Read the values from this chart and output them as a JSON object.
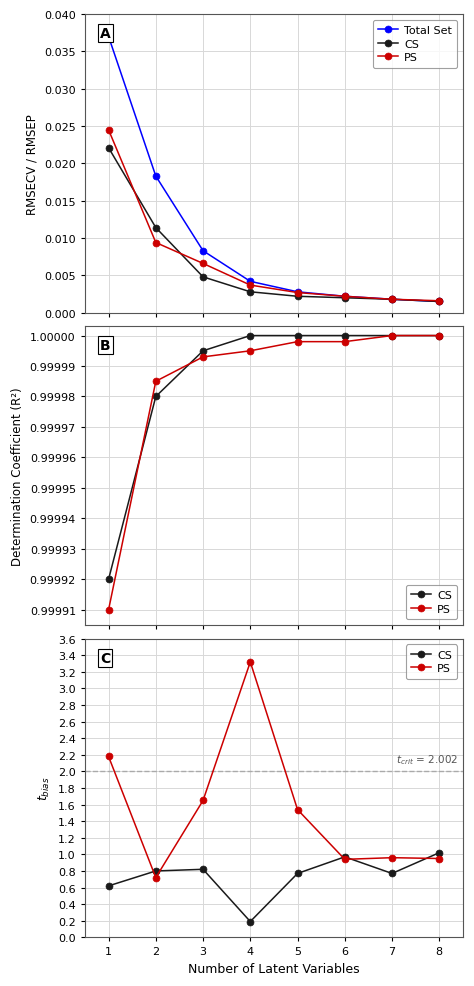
{
  "lv": [
    1,
    2,
    3,
    4,
    5,
    6,
    7,
    8
  ],
  "panel_A": {
    "total_set": [
      0.037,
      0.0183,
      0.0083,
      0.0042,
      0.0028,
      0.0022,
      0.0018,
      0.0015
    ],
    "cs": [
      0.0221,
      0.0114,
      0.0048,
      0.0028,
      0.0022,
      0.002,
      0.0018,
      0.0015
    ],
    "ps": [
      0.0245,
      0.0094,
      0.0066,
      0.0037,
      0.0027,
      0.0022,
      0.0018,
      0.0016
    ],
    "ylim": [
      0.0,
      0.04
    ],
    "yticks": [
      0.0,
      0.005,
      0.01,
      0.015,
      0.02,
      0.025,
      0.03,
      0.035,
      0.04
    ],
    "ylabel": "RMSECV / RMSEP",
    "label": "A"
  },
  "panel_B": {
    "cs": [
      0.99992,
      0.99998,
      0.999995,
      1.0,
      1.0,
      1.0,
      1.0,
      1.0
    ],
    "ps": [
      0.99991,
      0.999985,
      0.999993,
      0.999995,
      0.999998,
      0.999998,
      1.0,
      1.0
    ],
    "ylim": [
      0.999905,
      1.000003
    ],
    "yticks": [
      0.99991,
      0.99992,
      0.99993,
      0.99994,
      0.99995,
      0.99996,
      0.99997,
      0.99998,
      0.99999,
      1.0
    ],
    "ylabel": "Determination Coefficient (R²)",
    "label": "B"
  },
  "panel_C": {
    "cs": [
      0.62,
      0.8,
      0.82,
      0.19,
      0.77,
      0.97,
      0.77,
      1.02
    ],
    "ps": [
      2.18,
      0.72,
      1.65,
      3.32,
      1.54,
      0.94,
      0.96,
      0.95
    ],
    "t_crit": 2.002,
    "ylim": [
      0.0,
      3.6
    ],
    "yticks": [
      0.0,
      0.2,
      0.4,
      0.6,
      0.8,
      1.0,
      1.2,
      1.4,
      1.6,
      1.8,
      2.0,
      2.2,
      2.4,
      2.6,
      2.8,
      3.0,
      3.2,
      3.4,
      3.6
    ],
    "ylabel": "t_bias",
    "label": "C"
  },
  "xlabel": "Number of Latent Variables",
  "color_blue": "#0000FF",
  "color_black": "#1a1a1a",
  "color_red": "#CC0000",
  "color_gray": "#999999",
  "grid_color": "#D8D8D8",
  "bg_color": "#FFFFFF"
}
